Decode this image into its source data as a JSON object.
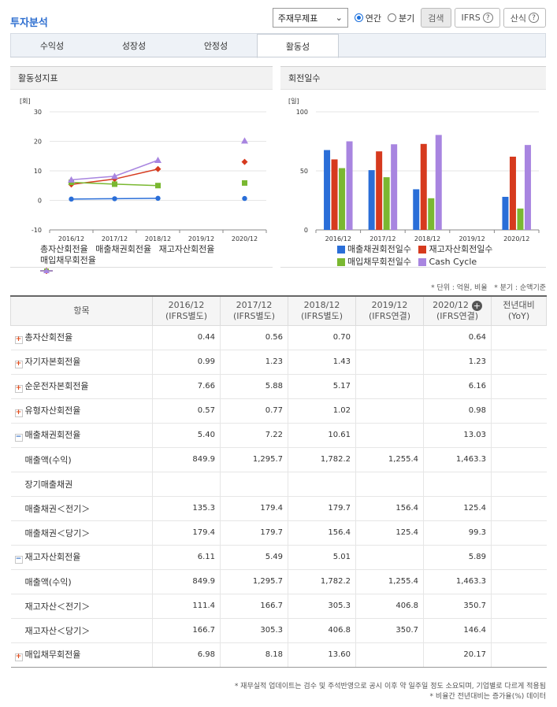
{
  "page_title": "투자분석",
  "controls": {
    "report_select": "주재무제표",
    "radio_annual": "연간",
    "radio_quarter": "분기",
    "search": "검색",
    "ifrs": "IFRS",
    "formula": "산식"
  },
  "tabs": [
    "수익성",
    "성장성",
    "안정성",
    "활동성"
  ],
  "chart_data": [
    {
      "type": "line",
      "title": "활동성지표",
      "ylabel": "[회]",
      "ylim": [
        -10,
        30
      ],
      "yticks": [
        -10,
        0,
        10,
        20,
        30
      ],
      "categories": [
        "2016/12",
        "2017/12",
        "2018/12",
        "2019/12",
        "2020/12"
      ],
      "series": [
        {
          "name": "총자산회전율",
          "color": "#2a6ed8",
          "values": [
            0.44,
            0.56,
            0.7,
            null,
            0.64
          ]
        },
        {
          "name": "매출채권회전율",
          "color": "#d63a1e",
          "values": [
            5.4,
            7.22,
            10.61,
            null,
            13.03
          ]
        },
        {
          "name": "재고자산회전율",
          "color": "#7ab831",
          "values": [
            6.11,
            5.49,
            5.01,
            null,
            5.89
          ]
        },
        {
          "name": "매입채무회전율",
          "color": "#a885e0",
          "values": [
            6.98,
            8.18,
            13.6,
            null,
            20.17
          ]
        }
      ]
    },
    {
      "type": "bar",
      "title": "회전일수",
      "ylabel": "[일]",
      "ylim": [
        0,
        100
      ],
      "yticks": [
        0,
        50,
        100
      ],
      "categories": [
        "2016/12",
        "2017/12",
        "2018/12",
        "2019/12",
        "2020/12"
      ],
      "series": [
        {
          "name": "매출채권회전일수",
          "color": "#2a6ed8",
          "values": [
            67.6,
            50.6,
            34.4,
            null,
            28.0
          ]
        },
        {
          "name": "재고자산회전일수",
          "color": "#d63a1e",
          "values": [
            59.7,
            66.5,
            72.8,
            null,
            62.0
          ]
        },
        {
          "name": "매입채무회전일수",
          "color": "#7ab831",
          "values": [
            52.3,
            44.6,
            26.8,
            null,
            18.1
          ]
        },
        {
          "name": "Cash Cycle",
          "color": "#a885e0",
          "values": [
            75.0,
            72.5,
            80.4,
            null,
            71.9
          ]
        }
      ]
    }
  ],
  "notes": {
    "unit": "* 단위 : 억원, 비율",
    "quarter": "* 분기 : 순액기준",
    "footer1": "* 재무실적 업데이트는 검수 및 주석반영으로 공시 이후 약 일주일 정도 소요되며, 기업별로 다르게 적용됨",
    "footer2": "* 비율간 전년대비는 증가율(%) 데이터"
  },
  "table": {
    "header_item": "항목",
    "columns": [
      {
        "year": "2016/12",
        "basis": "(IFRS별도)"
      },
      {
        "year": "2017/12",
        "basis": "(IFRS별도)"
      },
      {
        "year": "2018/12",
        "basis": "(IFRS별도)"
      },
      {
        "year": "2019/12",
        "basis": "(IFRS연결)"
      },
      {
        "year": "2020/12",
        "basis": "(IFRS연결)"
      }
    ],
    "yoy_label": "전년대비",
    "yoy_sub": "(YoY)",
    "rows": [
      {
        "label": "총자산회전율",
        "kind": "plus",
        "values": [
          "0.44",
          "0.56",
          "0.70",
          "",
          "0.64",
          ""
        ]
      },
      {
        "label": "자기자본회전율",
        "kind": "plus",
        "values": [
          "0.99",
          "1.23",
          "1.43",
          "",
          "1.23",
          ""
        ]
      },
      {
        "label": "순운전자본회전율",
        "kind": "plus",
        "values": [
          "7.66",
          "5.88",
          "5.17",
          "",
          "6.16",
          ""
        ]
      },
      {
        "label": "유형자산회전율",
        "kind": "plus",
        "values": [
          "0.57",
          "0.77",
          "1.02",
          "",
          "0.98",
          ""
        ]
      },
      {
        "label": "매출채권회전율",
        "kind": "minus",
        "values": [
          "5.40",
          "7.22",
          "10.61",
          "",
          "13.03",
          ""
        ]
      },
      {
        "label": "매출액(수익)",
        "kind": "sub",
        "values": [
          "849.9",
          "1,295.7",
          "1,782.2",
          "1,255.4",
          "1,463.3",
          ""
        ]
      },
      {
        "label": "장기매출채권",
        "kind": "sub",
        "values": [
          "",
          "",
          "",
          "",
          "",
          ""
        ]
      },
      {
        "label": "매출채권＜전기＞",
        "kind": "sub",
        "values": [
          "135.3",
          "179.4",
          "179.7",
          "156.4",
          "125.4",
          ""
        ]
      },
      {
        "label": "매출채권＜당기＞",
        "kind": "sub",
        "values": [
          "179.4",
          "179.7",
          "156.4",
          "125.4",
          "99.3",
          ""
        ]
      },
      {
        "label": "재고자산회전율",
        "kind": "minus",
        "values": [
          "6.11",
          "5.49",
          "5.01",
          "",
          "5.89",
          ""
        ]
      },
      {
        "label": "매출액(수익)",
        "kind": "sub",
        "values": [
          "849.9",
          "1,295.7",
          "1,782.2",
          "1,255.4",
          "1,463.3",
          ""
        ]
      },
      {
        "label": "재고자산＜전기＞",
        "kind": "sub",
        "values": [
          "111.4",
          "166.7",
          "305.3",
          "406.8",
          "350.7",
          ""
        ]
      },
      {
        "label": "재고자산＜당기＞",
        "kind": "sub",
        "values": [
          "166.7",
          "305.3",
          "406.8",
          "350.7",
          "146.4",
          ""
        ]
      },
      {
        "label": "매입채무회전율",
        "kind": "plus",
        "values": [
          "6.98",
          "8.18",
          "13.60",
          "",
          "20.17",
          ""
        ]
      }
    ]
  }
}
